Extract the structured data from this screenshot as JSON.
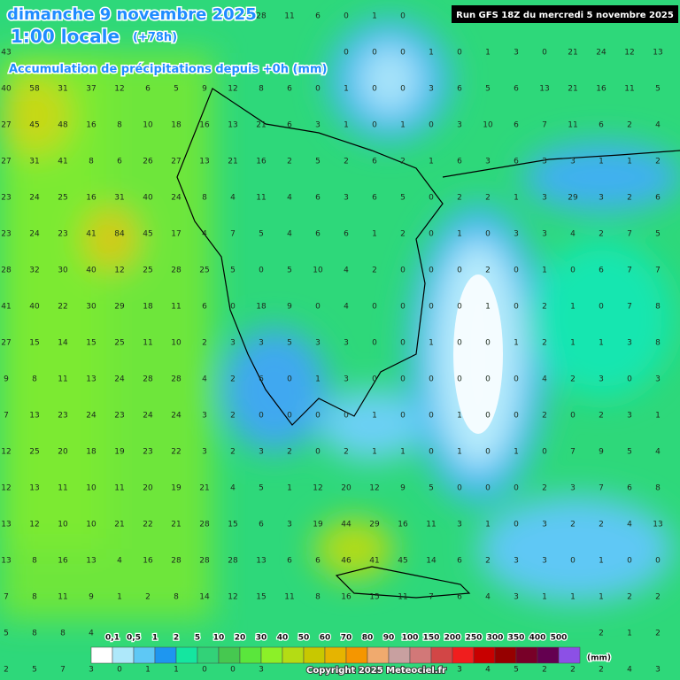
{
  "header": {
    "date": "dimanche 9 novembre 2025",
    "time": "1:00 locale",
    "lead": "(+78h)",
    "subtitle": "Accumulation de précipitations depuis +0h (mm)",
    "run": "Run GFS 18Z du mercredi 5 novembre 2025"
  },
  "grid": {
    "rows": [
      [
        null,
        null,
        null,
        null,
        null,
        null,
        null,
        null,
        null,
        28,
        11,
        6,
        0,
        1,
        0,
        null,
        null,
        null,
        null,
        null,
        null,
        null,
        null,
        null
      ],
      [
        43,
        null,
        null,
        null,
        null,
        null,
        null,
        null,
        null,
        null,
        null,
        null,
        0,
        0,
        0,
        1,
        0,
        1,
        3,
        0,
        21,
        24,
        12,
        13
      ],
      [
        40,
        58,
        31,
        37,
        12,
        6,
        5,
        9,
        12,
        8,
        6,
        0,
        1,
        0,
        0,
        3,
        6,
        5,
        6,
        13,
        21,
        16,
        11,
        5
      ],
      [
        27,
        45,
        48,
        16,
        8,
        10,
        18,
        16,
        13,
        21,
        6,
        3,
        1,
        0,
        1,
        0,
        3,
        10,
        6,
        7,
        11,
        6,
        2,
        4
      ],
      [
        27,
        31,
        41,
        8,
        6,
        26,
        27,
        13,
        21,
        16,
        2,
        5,
        2,
        6,
        2,
        1,
        6,
        3,
        6,
        3,
        3,
        1,
        1,
        2
      ],
      [
        23,
        24,
        25,
        16,
        31,
        40,
        24,
        8,
        4,
        11,
        4,
        6,
        3,
        6,
        5,
        0,
        2,
        2,
        1,
        3,
        29,
        3,
        2,
        6
      ],
      [
        23,
        24,
        23,
        41,
        84,
        45,
        17,
        4,
        7,
        5,
        4,
        6,
        6,
        1,
        2,
        0,
        1,
        0,
        3,
        3,
        4,
        2,
        7,
        5
      ],
      [
        28,
        32,
        30,
        40,
        12,
        25,
        28,
        25,
        5,
        0,
        5,
        10,
        4,
        2,
        0,
        0,
        0,
        2,
        0,
        1,
        0,
        6,
        7,
        7
      ],
      [
        41,
        40,
        22,
        30,
        29,
        18,
        11,
        6,
        0,
        18,
        9,
        0,
        4,
        0,
        0,
        0,
        0,
        1,
        0,
        2,
        1,
        0,
        7,
        8
      ],
      [
        27,
        15,
        14,
        15,
        25,
        11,
        10,
        2,
        3,
        3,
        5,
        3,
        3,
        0,
        0,
        1,
        0,
        0,
        1,
        2,
        1,
        1,
        3,
        8
      ],
      [
        9,
        8,
        11,
        13,
        24,
        28,
        28,
        4,
        2,
        6,
        0,
        1,
        3,
        0,
        0,
        0,
        0,
        0,
        0,
        4,
        2,
        3,
        0,
        3
      ],
      [
        7,
        13,
        23,
        24,
        23,
        24,
        24,
        3,
        2,
        0,
        0,
        0,
        0,
        1,
        0,
        0,
        1,
        0,
        0,
        2,
        0,
        2,
        3,
        1
      ],
      [
        12,
        25,
        20,
        18,
        19,
        23,
        22,
        3,
        2,
        3,
        2,
        0,
        2,
        1,
        1,
        0,
        1,
        0,
        1,
        0,
        7,
        9,
        5,
        4
      ],
      [
        12,
        13,
        11,
        10,
        11,
        20,
        19,
        21,
        4,
        5,
        1,
        12,
        20,
        12,
        9,
        5,
        0,
        0,
        0,
        2,
        3,
        7,
        6,
        8
      ],
      [
        13,
        12,
        10,
        10,
        21,
        22,
        21,
        28,
        15,
        6,
        3,
        19,
        44,
        29,
        16,
        11,
        3,
        1,
        0,
        3,
        2,
        2,
        4,
        13
      ],
      [
        13,
        8,
        16,
        13,
        4,
        16,
        28,
        28,
        28,
        13,
        6,
        6,
        46,
        41,
        45,
        14,
        6,
        2,
        3,
        3,
        0,
        1,
        0,
        0
      ],
      [
        7,
        8,
        11,
        9,
        1,
        2,
        8,
        14,
        12,
        15,
        11,
        8,
        16,
        15,
        11,
        7,
        6,
        4,
        3,
        1,
        1,
        1,
        2,
        2
      ],
      [
        5,
        8,
        8,
        4,
        null,
        null,
        null,
        null,
        null,
        null,
        null,
        null,
        null,
        null,
        null,
        null,
        null,
        null,
        null,
        null,
        null,
        2,
        1,
        2
      ],
      [
        2,
        5,
        7,
        3,
        0,
        1,
        1,
        0,
        0,
        3,
        null,
        null,
        null,
        null,
        null,
        null,
        3,
        4,
        5,
        2,
        2,
        2,
        4,
        3
      ]
    ]
  },
  "legend": {
    "thresholds": [
      {
        "value": 0.1,
        "label": "0,1"
      },
      {
        "value": 0.5,
        "label": "0,5"
      },
      1,
      2,
      5,
      10,
      20,
      30,
      40,
      50,
      60,
      70,
      80,
      90,
      100,
      150,
      200,
      250,
      300,
      350,
      400,
      500
    ],
    "colors": [
      "#ffffff",
      "#aee8fa",
      "#5ec8f5",
      "#1e96f0",
      "#14e6a0",
      "#32d278",
      "#46c850",
      "#5ae63c",
      "#8cf028",
      "#b4dc14",
      "#c8c800",
      "#e6b400",
      "#f59600",
      "#f0aa6e",
      "#c8a0a0",
      "#d27878",
      "#d24646",
      "#f01e1e",
      "#c80000",
      "#960000",
      "#780028",
      "#640050",
      "#8c50e6"
    ],
    "unit": "(mm)"
  },
  "footer": {
    "copyright": "Copyright 2025 Meteociel.fr"
  }
}
